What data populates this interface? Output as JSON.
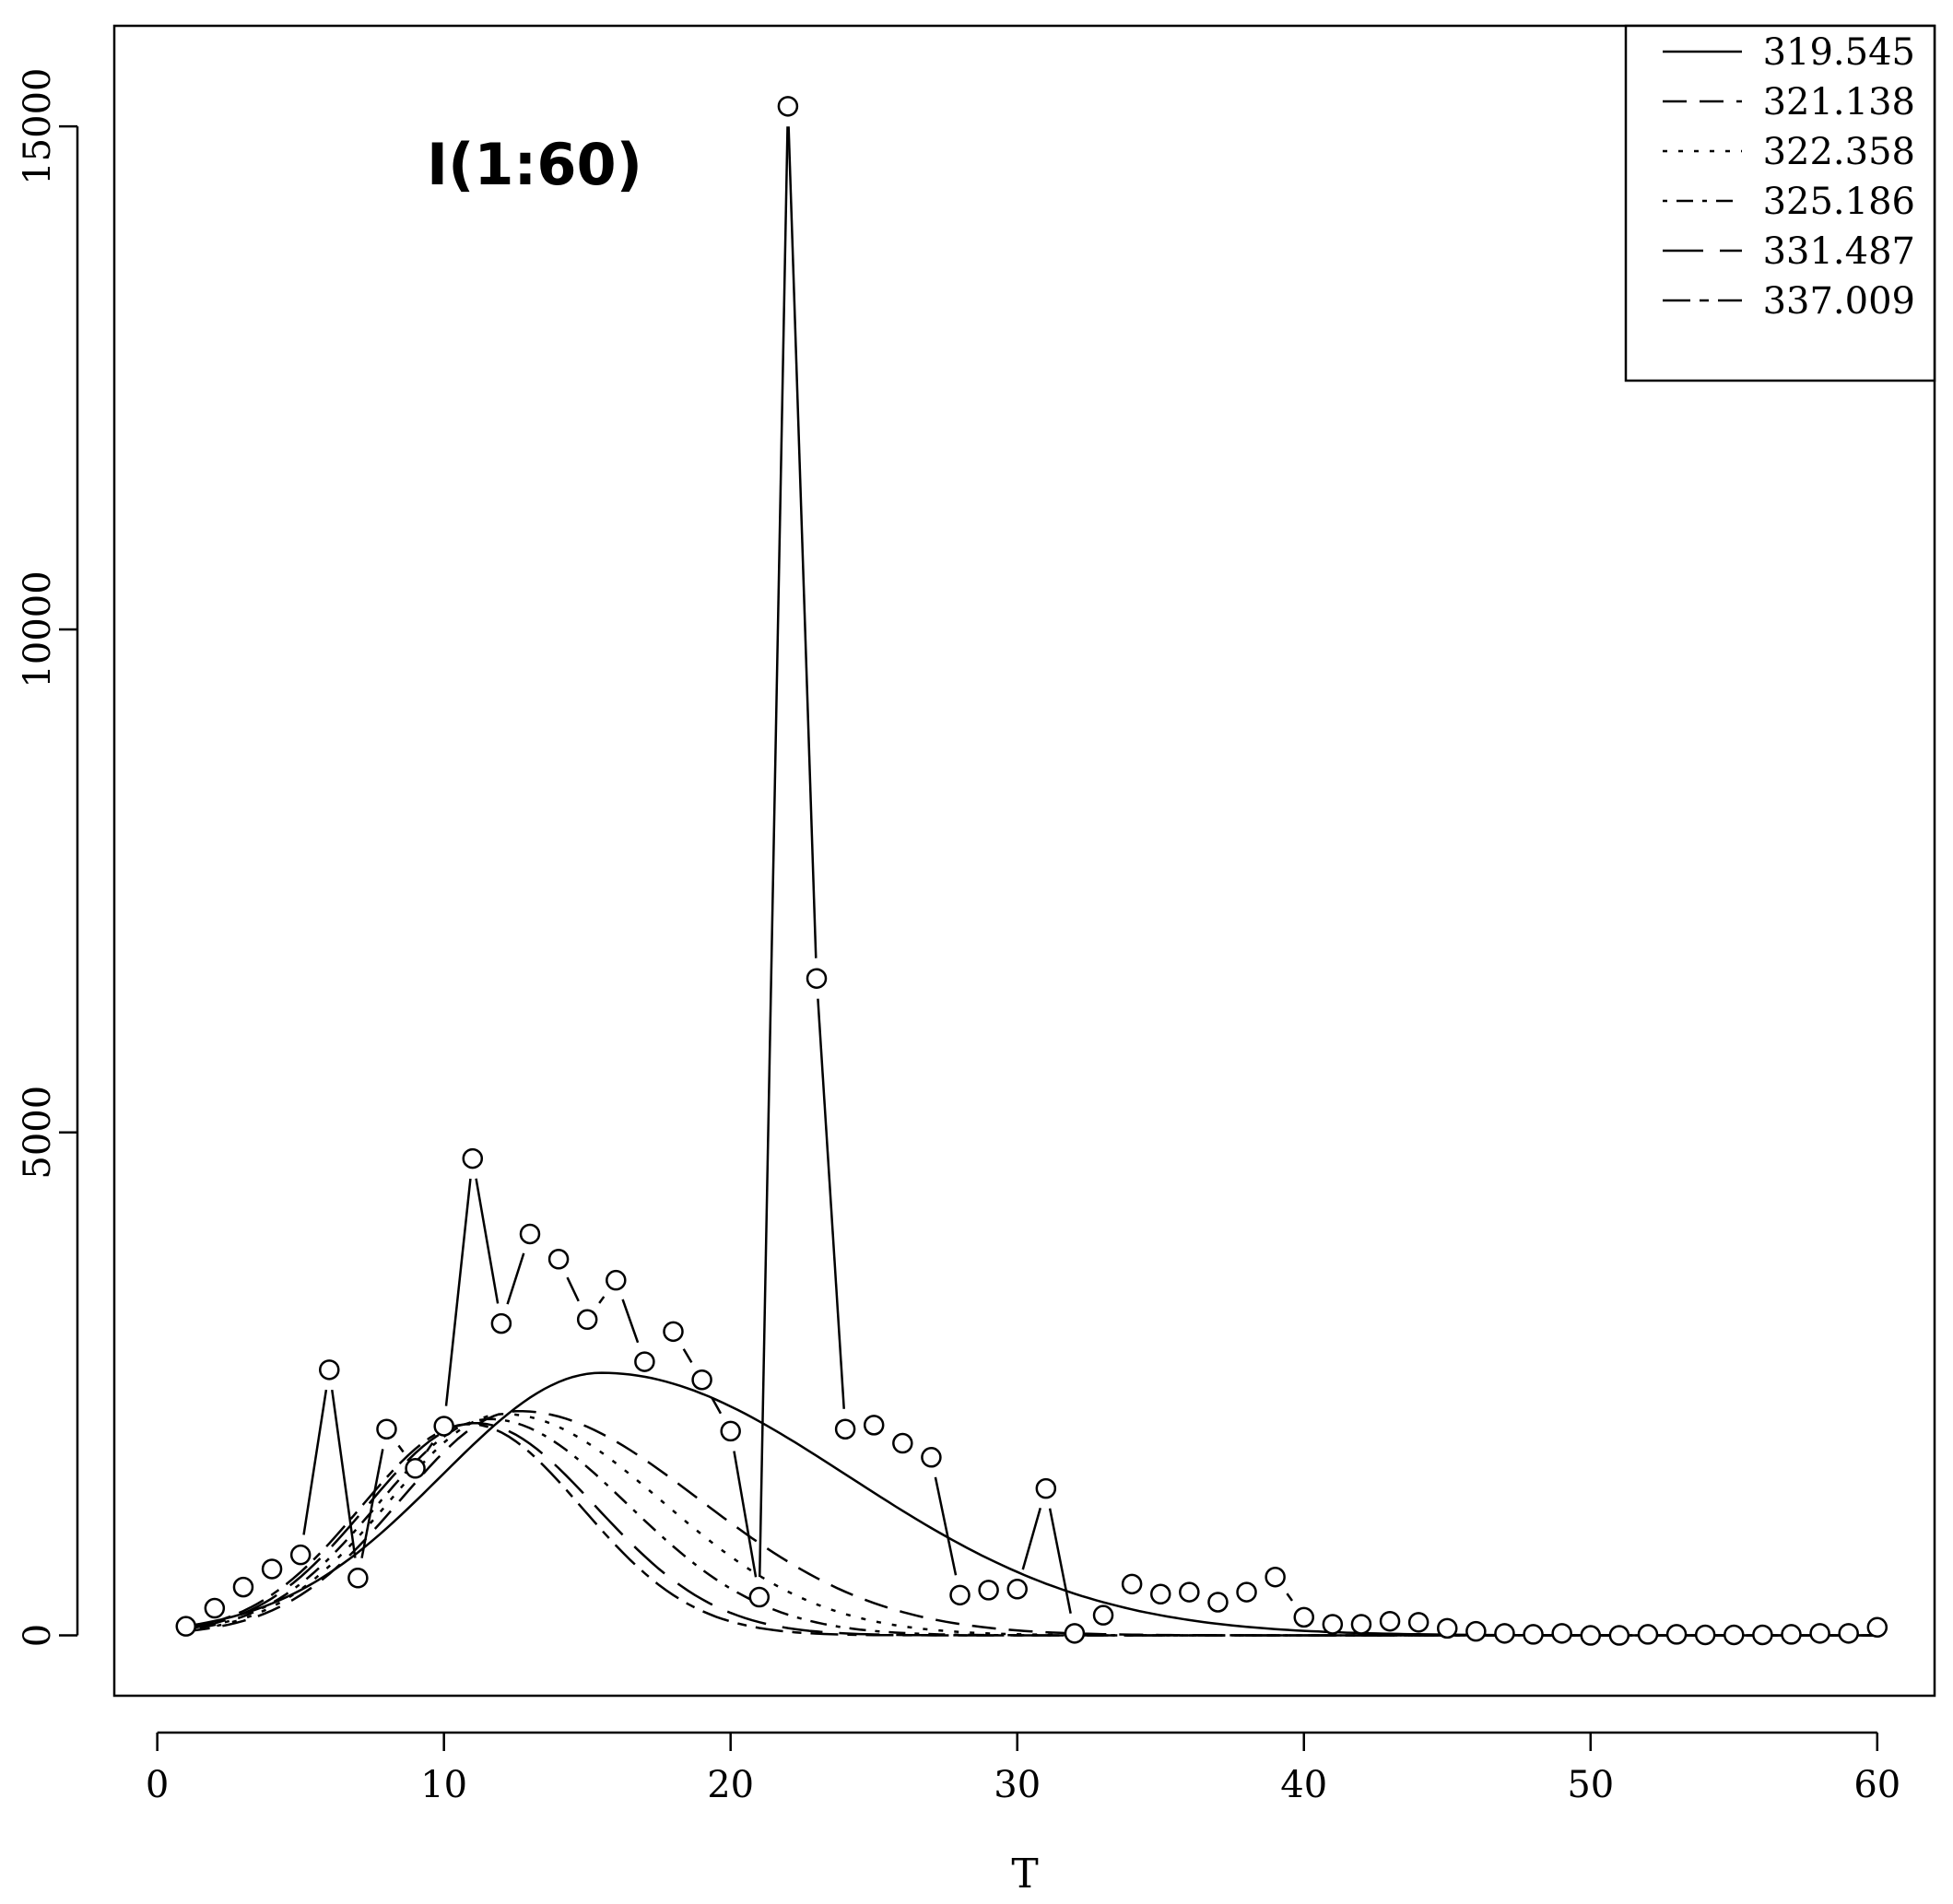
{
  "chart_data": {
    "type": "line",
    "title": "I(1:60)",
    "xlabel": "T",
    "ylabel": "",
    "xlim": [
      -1.5,
      62
    ],
    "ylim": [
      -600,
      16000
    ],
    "x_ticks": [
      0,
      10,
      20,
      30,
      40,
      50,
      60
    ],
    "y_ticks": [
      0,
      5000,
      10000,
      15000
    ],
    "x_tick_labels": [
      "0",
      "10",
      "20",
      "30",
      "40",
      "50",
      "60"
    ],
    "y_tick_labels": [
      "0",
      "5000",
      "10000",
      "15000"
    ],
    "grid": false,
    "legend_position": "top-right",
    "observed": {
      "x": [
        1,
        2,
        3,
        4,
        5,
        6,
        7,
        8,
        9,
        10,
        11,
        12,
        13,
        14,
        15,
        16,
        17,
        18,
        19,
        20,
        21,
        22,
        23,
        24,
        25,
        26,
        27,
        28,
        29,
        30,
        31,
        32,
        33,
        34,
        35,
        36,
        37,
        38,
        39,
        40,
        41,
        42,
        43,
        44,
        45,
        46,
        47,
        48,
        49,
        50,
        51,
        52,
        53,
        54,
        55,
        56,
        57,
        58,
        59,
        60
      ],
      "y": [
        90,
        270,
        480,
        660,
        800,
        2640,
        570,
        2050,
        1660,
        2080,
        4740,
        3100,
        3990,
        3740,
        3140,
        3530,
        2720,
        3020,
        2540,
        2030,
        380,
        15200,
        6530,
        2050,
        2090,
        1910,
        1770,
        400,
        450,
        460,
        1460,
        20,
        200,
        510,
        410,
        430,
        330,
        430,
        580,
        180,
        110,
        110,
        140,
        130,
        70,
        40,
        20,
        10,
        20,
        0,
        0,
        10,
        10,
        5,
        5,
        5,
        10,
        20,
        20,
        80
      ]
    },
    "series": [
      {
        "name": "319.545",
        "dash": "solid",
        "peak_t": 15.5,
        "peak": 2610,
        "sigma_left": 5.6,
        "sigma_right": 8.6
      },
      {
        "name": "321.138",
        "dash": "long-dash",
        "peak_t": 12.6,
        "peak": 2230,
        "sigma_left": 4.1,
        "sigma_right": 6.3
      },
      {
        "name": "322.358",
        "dash": "dotted",
        "peak_t": 12.1,
        "peak": 2200,
        "sigma_left": 4.0,
        "sigma_right": 5.5
      },
      {
        "name": "325.186",
        "dash": "dot-dash",
        "peak_t": 11.6,
        "peak": 2150,
        "sigma_left": 3.9,
        "sigma_right": 4.8
      },
      {
        "name": "331.487",
        "dash": "long-long-dash",
        "peak_t": 11.1,
        "peak": 2110,
        "sigma_left": 3.8,
        "sigma_right": 4.2
      },
      {
        "name": "337.009",
        "dash": "two-dash",
        "peak_t": 10.9,
        "peak": 2100,
        "sigma_left": 3.8,
        "sigma_right": 3.9
      }
    ]
  }
}
